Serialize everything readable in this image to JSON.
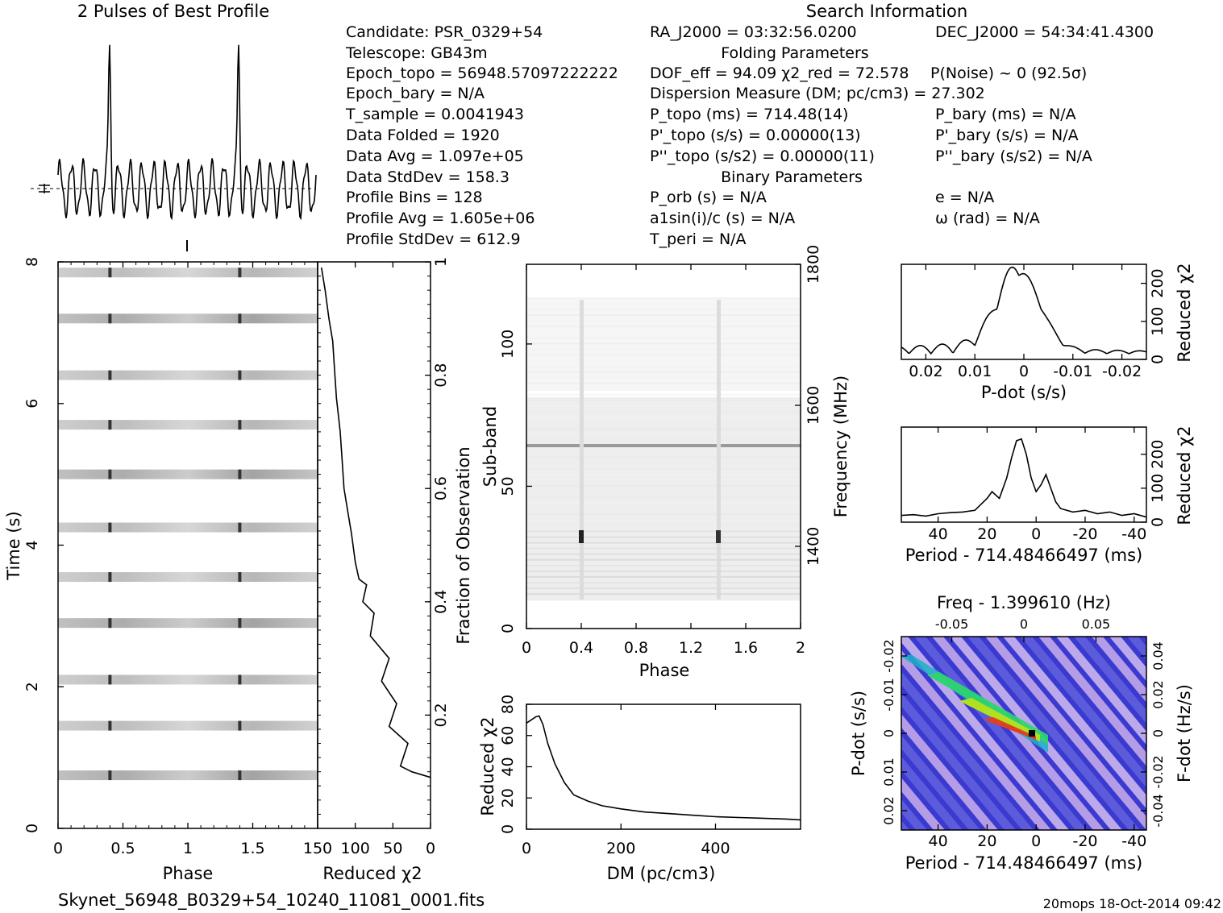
{
  "header": {
    "profile_title": "2 Pulses of Best Profile",
    "search_title": "Search Information",
    "folding_title": "Folding Parameters",
    "binary_title": "Binary Parameters"
  },
  "info_left": [
    "Candidate:  PSR_0329+54",
    "Telescope:  GB43m",
    "Epoch_topo = 56948.57097222222",
    "Epoch_bary = N/A",
    "T_sample   =  0.0041943",
    "Data Folded    =  1920",
    "Data Avg        =  1.097e+05",
    "Data StdDev    =  158.3",
    "Profile Bins    =  128",
    "Profile Avg     =  1.605e+06",
    "Profile StdDev =  612.9"
  ],
  "info_mid": {
    "ra": "RA_J2000 = 03:32:56.0200",
    "dof": "DOF_eff = 94.09  χ2_red = 72.578",
    "dm": "Dispersion Measure (DM; pc/cm3) = 27.302",
    "p": "P_topo (ms) =  714.48(14)",
    "pd": "P'_topo (s/s) =  0.00000(13)",
    "pdd": "P''_topo (s/s2) =  0.00000(11)",
    "porb": "P_orb (s) = N/A",
    "a1": "a1sin(i)/c (s) = N/A",
    "tperi": "T_peri = N/A"
  },
  "info_right": {
    "dec": "DEC_J2000 = 54:34:41.4300",
    "pnoise": "P(Noise) ~ 0   (92.5σ)",
    "pb": "P_bary (ms) = N/A",
    "pdb": "P'_bary (s/s) = N/A",
    "pddb": "P''_bary (s/s2) = N/A",
    "e": "e = N/A",
    "w": "ω (rad) = N/A"
  },
  "footer": {
    "filename": "Skynet_56948_B0329+54_10240_11081_0001.fits",
    "stamp": "20mops 18-Oct-2014 09:42"
  },
  "chart_data": [
    {
      "name": "profile",
      "type": "line",
      "title": "2 Pulses of Best Profile",
      "x_range": [
        0,
        2
      ],
      "peaks_at_phase": [
        0.4,
        1.4
      ],
      "profile_avg": 1605000,
      "profile_stddev": 612.9
    },
    {
      "name": "time-vs-phase",
      "type": "heatmap",
      "xlabel": "Phase",
      "ylabel": "Time (s)",
      "xticks": [
        "0",
        "0.5",
        "1",
        "1.5"
      ],
      "yticks": [
        "0",
        "2",
        "4",
        "6",
        "8"
      ],
      "xlim": [
        0,
        2
      ],
      "ylim": [
        0,
        8
      ],
      "row_times_s": [
        0.75,
        1.45,
        2.1,
        2.9,
        3.55,
        4.25,
        5.0,
        5.7,
        6.4,
        7.2,
        7.85
      ]
    },
    {
      "name": "chi-vs-time",
      "type": "line",
      "xlabel": "Reduced χ2",
      "ylabel": "Fraction of Observation",
      "xticks": [
        "150",
        "100",
        "50",
        "0"
      ],
      "yticks": [
        "0.2",
        "0.4",
        "0.6",
        "0.8",
        "1"
      ],
      "xlim": [
        150,
        0
      ],
      "ylim": [
        0,
        1
      ],
      "x": [
        0,
        25,
        40,
        30,
        55,
        45,
        65,
        55,
        80,
        75,
        90,
        85,
        95,
        100,
        105,
        110,
        115,
        118,
        120,
        125,
        128,
        130,
        135,
        140,
        145
      ],
      "y": [
        0.09,
        0.1,
        0.11,
        0.15,
        0.18,
        0.22,
        0.26,
        0.3,
        0.34,
        0.38,
        0.4,
        0.43,
        0.44,
        0.47,
        0.52,
        0.56,
        0.6,
        0.66,
        0.7,
        0.76,
        0.82,
        0.86,
        0.9,
        0.95,
        0.99
      ]
    },
    {
      "name": "subband-vs-phase",
      "type": "heatmap",
      "xlabel": "Phase",
      "ylabel": "Sub-band",
      "y2label": "Frequency (MHz)",
      "xticks": [
        "0",
        "0.4",
        "0.8",
        "1.2",
        "1.6",
        "2"
      ],
      "yticks": [
        "0",
        "50",
        "100"
      ],
      "y2ticks": [
        "1400",
        "1600",
        "1800"
      ],
      "xlim": [
        0,
        2
      ],
      "ylim": [
        0,
        128
      ]
    },
    {
      "name": "chi-vs-dm",
      "type": "line",
      "xlabel": "DM (pc/cm3)",
      "ylabel": "Reduced χ2",
      "xticks": [
        "0",
        "200",
        "400"
      ],
      "yticks": [
        "0",
        "20",
        "40",
        "60",
        "80"
      ],
      "xlim": [
        0,
        580
      ],
      "ylim": [
        0,
        80
      ],
      "x": [
        0,
        10,
        20,
        27,
        35,
        45,
        60,
        80,
        100,
        130,
        160,
        200,
        250,
        300,
        350,
        400,
        450,
        500,
        550,
        580
      ],
      "y": [
        68,
        70,
        72,
        72.5,
        67,
        55,
        42,
        30,
        22,
        18,
        15,
        13,
        11,
        10,
        9,
        8,
        7.5,
        7,
        6.5,
        6
      ]
    },
    {
      "name": "chi-vs-pdot",
      "type": "line",
      "xlabel": "P-dot (s/s)",
      "ylabel": "Reduced χ2",
      "xticks": [
        "0.02",
        "0.01",
        "0",
        "-0.01",
        "-0.02"
      ],
      "yticks": [
        "0",
        "100",
        "200"
      ],
      "xlim": [
        0.025,
        -0.025
      ],
      "ylim": [
        0,
        250
      ],
      "peak": {
        "x": 0.001,
        "y": 225
      }
    },
    {
      "name": "chi-vs-period",
      "type": "line",
      "xlabel": "Period - 714.48466497 (ms)",
      "ylabel": "Reduced χ2",
      "xticks": [
        "40",
        "20",
        "0",
        "-20",
        "-40"
      ],
      "yticks": [
        "0",
        "100",
        "200"
      ],
      "xlim": [
        55,
        -45
      ],
      "ylim": [
        0,
        280
      ],
      "x": [
        55,
        50,
        45,
        40,
        35,
        30,
        25,
        20,
        18,
        15,
        12,
        10,
        8,
        6,
        4,
        2,
        0,
        -2,
        -4,
        -6,
        -8,
        -10,
        -15,
        -20,
        -25,
        -30,
        -35,
        -40,
        -45
      ],
      "y": [
        20,
        22,
        18,
        25,
        28,
        30,
        35,
        70,
        90,
        70,
        130,
        190,
        240,
        245,
        200,
        130,
        90,
        110,
        140,
        100,
        60,
        40,
        30,
        35,
        25,
        30,
        20,
        25,
        15
      ]
    },
    {
      "name": "pdot-vs-period",
      "type": "heatmap",
      "title": "Freq - 1.399610 (Hz)",
      "xlabel": "Period - 714.48466497 (ms)",
      "ylabel": "P-dot (s/s)",
      "y2label": "F-dot (Hz/s)",
      "xticks": [
        "40",
        "20",
        "0",
        "-20",
        "-40"
      ],
      "x2ticks": [
        "-0.05",
        "0",
        "0.05"
      ],
      "yticks": [
        "-0.02",
        "-0.01",
        "0",
        "0.01",
        "0.02"
      ],
      "y2ticks": [
        "0.04",
        "0.02",
        "0",
        "-0.02",
        "-0.04"
      ],
      "xlim": [
        55,
        -45
      ],
      "ylim": [
        -0.025,
        0.025
      ]
    }
  ]
}
